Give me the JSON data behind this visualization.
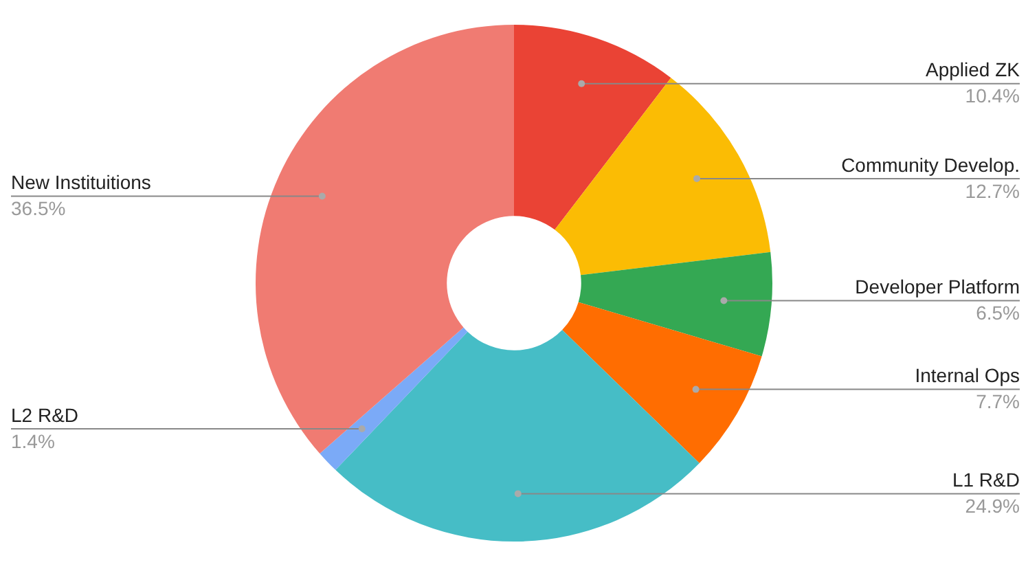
{
  "chart_data": {
    "type": "donut",
    "categories": [
      "Applied ZK",
      "Community Develop.",
      "Developer Platform",
      "Internal Ops",
      "L1 R&D",
      "L2 R&D",
      "New Instituitions"
    ],
    "values": [
      10.4,
      12.7,
      6.5,
      7.7,
      24.9,
      1.4,
      36.5
    ],
    "colors": [
      "#ea4335",
      "#fbbc04",
      "#34a853",
      "#ff6d01",
      "#46bdc6",
      "#7baaf7",
      "#f07b72"
    ],
    "value_labels": [
      "10.4%",
      "12.7%",
      "6.5%",
      "7.7%",
      "24.9%",
      "1.4%",
      "36.5%"
    ],
    "legend": false
  }
}
